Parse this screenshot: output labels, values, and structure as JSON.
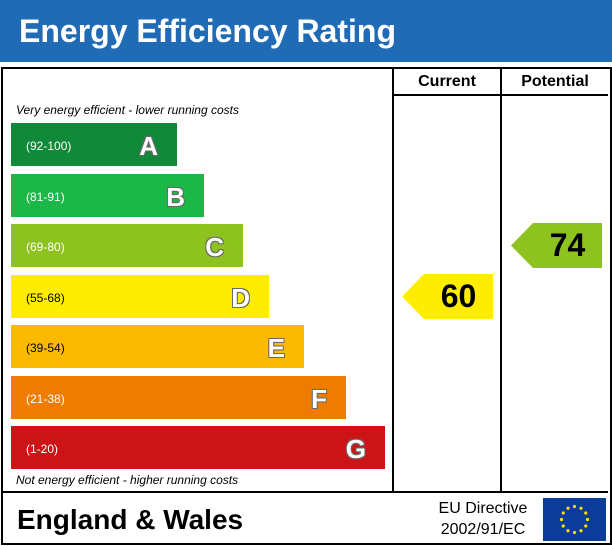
{
  "title": "Energy Efficiency Rating",
  "columns": {
    "current": "Current",
    "potential": "Potential"
  },
  "notes": {
    "top": "Very energy efficient - lower running costs",
    "bottom": "Not energy efficient - higher running costs"
  },
  "chart_data": {
    "type": "bar",
    "title": "Energy Efficiency Rating",
    "categories": [
      "A",
      "B",
      "C",
      "D",
      "E",
      "F",
      "G"
    ],
    "bands": [
      {
        "letter": "A",
        "range": "(92-100)",
        "color": "#108a39"
      },
      {
        "letter": "B",
        "range": "(81-91)",
        "color": "#1cb847"
      },
      {
        "letter": "C",
        "range": "(69-80)",
        "color": "#8dc21f"
      },
      {
        "letter": "D",
        "range": "(55-68)",
        "color": "#ffed00"
      },
      {
        "letter": "E",
        "range": "(39-54)",
        "color": "#fbb900"
      },
      {
        "letter": "F",
        "range": "(21-38)",
        "color": "#ef7c00"
      },
      {
        "letter": "G",
        "range": "(1-20)",
        "color": "#cc1417"
      }
    ],
    "current": {
      "value": 60,
      "band": "D",
      "color": "#ffed00"
    },
    "potential": {
      "value": 74,
      "band": "C",
      "color": "#8dc21f"
    }
  },
  "footer": {
    "country": "England & Wales",
    "directive_line1": "EU Directive",
    "directive_line2": "2002/91/EC"
  },
  "colors": {
    "header": "#1f6bb6",
    "eu_flag": "#0b3c99",
    "eu_stars": "#ffdd00"
  }
}
